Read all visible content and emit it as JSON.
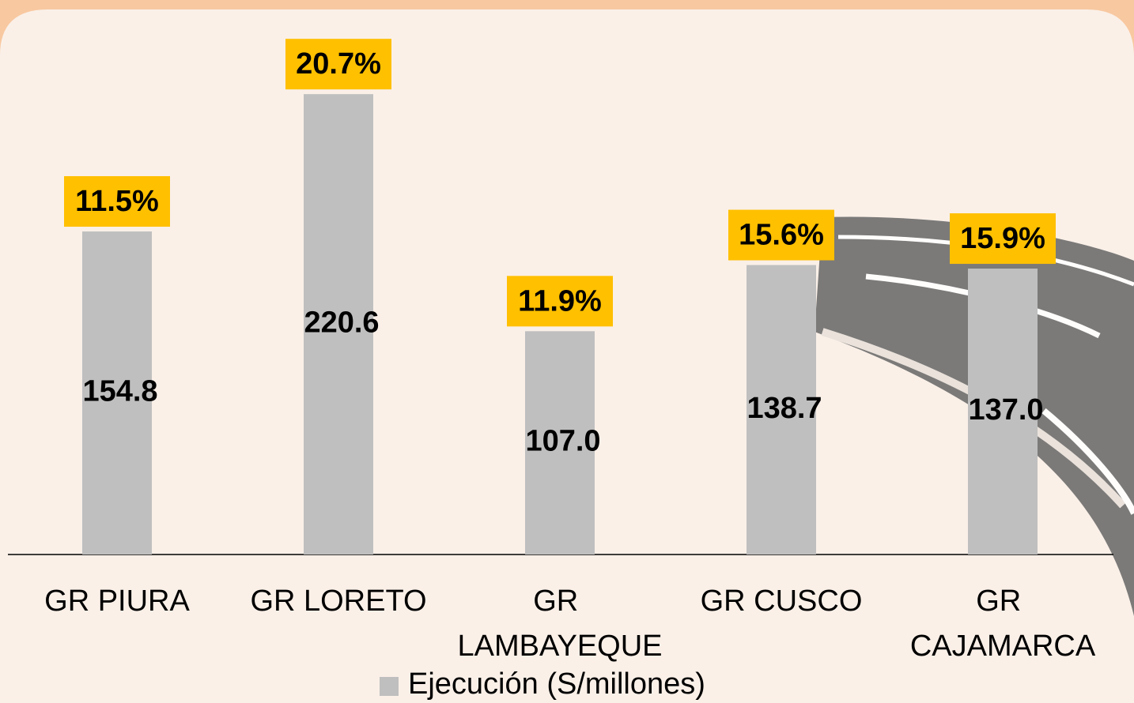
{
  "chart_data": {
    "type": "bar",
    "categories": [
      "GR PIURA",
      "GR LORETO",
      "GR LAMBAYEQUE",
      "GR CUSCO",
      "GR CAJAMARCA"
    ],
    "series": [
      {
        "name": "Ejecución (S/millones)",
        "color": "#bfbfbf",
        "values": [
          154.8,
          220.6,
          107.0,
          138.7,
          137.0
        ],
        "value_labels": [
          "154.8",
          "220.6",
          "107.0",
          "138.7",
          "137.0"
        ]
      }
    ],
    "percentages": [
      11.5,
      20.7,
      11.9,
      15.6,
      15.9
    ],
    "percentage_labels": [
      "11.5%",
      "20.7%",
      "11.9%",
      "15.6%",
      "15.9%"
    ],
    "percentage_color": "#ffc000"
  }
}
